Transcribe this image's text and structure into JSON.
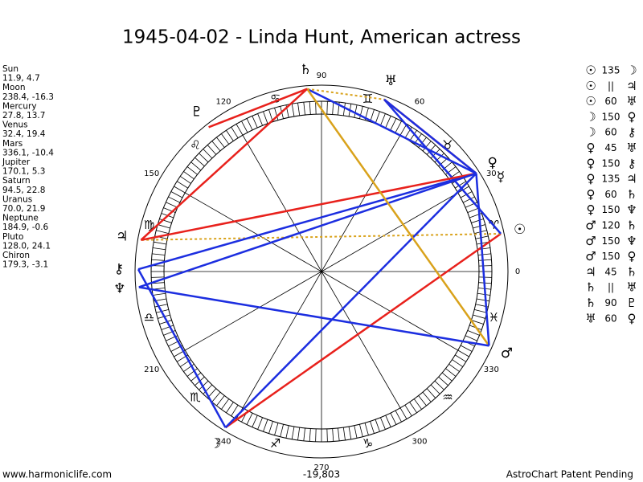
{
  "title": "1945-04-02 - Linda Hunt, American actress",
  "planets": [
    {
      "name": "Sun",
      "glyph": "☉",
      "position": "11.9, 4.7"
    },
    {
      "name": "Moon",
      "glyph": "☽",
      "position": "238.4, -16.3"
    },
    {
      "name": "Mercury",
      "glyph": "☿",
      "position": "27.8, 13.7"
    },
    {
      "name": "Venus",
      "glyph": "♀",
      "position": "32.4, 19.4"
    },
    {
      "name": "Mars",
      "glyph": "♂",
      "position": "336.1, -10.4"
    },
    {
      "name": "Jupiter",
      "glyph": "♃",
      "position": "170.1, 5.3"
    },
    {
      "name": "Saturn",
      "glyph": "♄",
      "position": "94.5, 22.8"
    },
    {
      "name": "Uranus",
      "glyph": "♅",
      "position": "70.0, 21.9"
    },
    {
      "name": "Neptune",
      "glyph": "♆",
      "position": "184.9, -0.6"
    },
    {
      "name": "Pluto",
      "glyph": "♇",
      "position": "128.0, 24.1"
    },
    {
      "name": "Chiron",
      "glyph": "⚷",
      "position": "179.3, -3.1"
    }
  ],
  "signs": [
    "♈",
    "♉",
    "♊",
    "♋",
    "♌",
    "♍",
    "♎",
    "♏",
    "♐",
    "♑",
    "♒",
    "♓"
  ],
  "degree_labels": [
    0,
    30,
    60,
    90,
    120,
    150,
    210,
    240,
    270,
    300,
    330
  ],
  "aspects": [
    {
      "from": "☉",
      "aspect": "135",
      "to": "☽",
      "color": "#e8211c",
      "line": "solid"
    },
    {
      "from": "☉",
      "aspect": "||",
      "to": "♃",
      "color": "#d9a21b",
      "line": "dotted"
    },
    {
      "from": "☉",
      "aspect": "60",
      "to": "♅",
      "color": "#1c2ee0",
      "line": "solid"
    },
    {
      "from": "☽",
      "aspect": "150",
      "to": "♀",
      "color": "#1c2ee0",
      "line": "solid"
    },
    {
      "from": "☽",
      "aspect": "60",
      "to": "⚷",
      "color": "#1c2ee0",
      "line": "solid"
    },
    {
      "from": "♀",
      "aspect": "45",
      "to": "♅",
      "color": "#e8211c",
      "line": "solid"
    },
    {
      "from": "♀",
      "aspect": "150",
      "to": "⚷",
      "color": "#1c2ee0",
      "line": "solid"
    },
    {
      "from": "♀",
      "aspect": "135",
      "to": "♃",
      "color": "#e8211c",
      "line": "solid"
    },
    {
      "from": "♀",
      "aspect": "60",
      "to": "♄",
      "color": "#1c2ee0",
      "line": "solid"
    },
    {
      "from": "♀",
      "aspect": "150",
      "to": "♆",
      "color": "#1c2ee0",
      "line": "solid"
    },
    {
      "from": "♂",
      "aspect": "120",
      "to": "♄",
      "color": "#d9a21b",
      "line": "solid"
    },
    {
      "from": "♂",
      "aspect": "150",
      "to": "♆",
      "color": "#1c2ee0",
      "line": "solid"
    },
    {
      "from": "♂",
      "aspect": "150",
      "to": "♀",
      "color": "#1c2ee0",
      "line": "solid"
    },
    {
      "from": "♃",
      "aspect": "45",
      "to": "♄",
      "color": "#e8211c",
      "line": "solid"
    },
    {
      "from": "♄",
      "aspect": "||",
      "to": "♅",
      "color": "#d9a21b",
      "line": "dotted"
    },
    {
      "from": "♄",
      "aspect": "90",
      "to": "♇",
      "color": "#e8211c",
      "line": "solid"
    },
    {
      "from": "♅",
      "aspect": "60",
      "to": "♀",
      "color": "#1c2ee0",
      "line": "solid"
    }
  ],
  "footer": {
    "left": "www.harmoniclife.com",
    "center": "-19,803",
    "right": "AstroChart Patent Pending"
  }
}
